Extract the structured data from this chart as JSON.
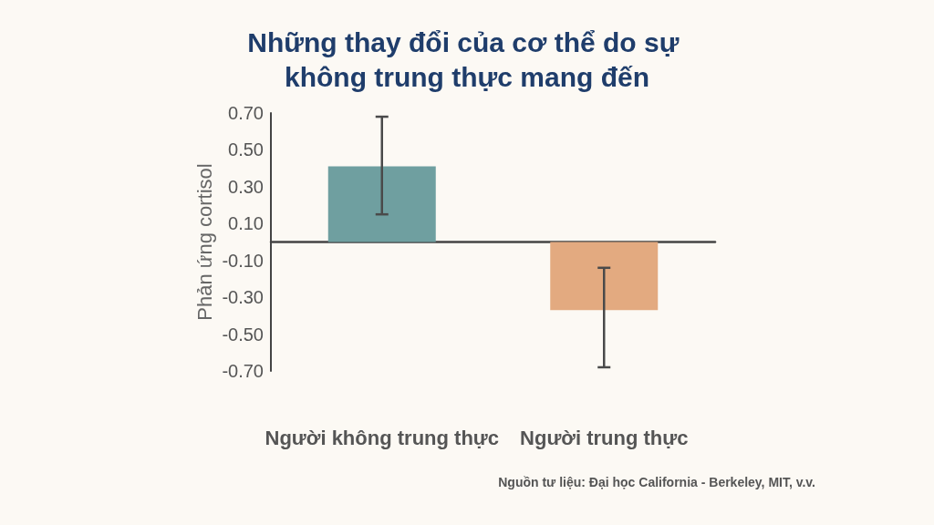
{
  "chart_data": {
    "type": "bar",
    "title": "Những thay đổi của cơ thể do sự không trung thực mang đến",
    "ylabel": "Phản ứng cortisol",
    "categories": [
      "Người không trung thực",
      "Người trung thực"
    ],
    "values": [
      0.41,
      -0.37
    ],
    "colors": [
      "#6f9fa0",
      "#e3aa80"
    ],
    "errors": [
      [
        0.15,
        0.68
      ],
      [
        -0.68,
        -0.14
      ]
    ],
    "ylim": [
      -0.7,
      0.7
    ],
    "yticks": [
      {
        "value": 0.7,
        "label": "0.70"
      },
      {
        "value": 0.5,
        "label": "0.50"
      },
      {
        "value": 0.3,
        "label": "0.30"
      },
      {
        "value": 0.1,
        "label": "0.10"
      },
      {
        "value": -0.1,
        "label": "-0.10"
      },
      {
        "value": -0.3,
        "label": "-0.30"
      },
      {
        "value": -0.5,
        "label": "-0.50"
      },
      {
        "value": -0.7,
        "label": "-0.70"
      }
    ],
    "grid": false,
    "annotations": [
      "Nguồn tư liệu: Đại học California - Berkeley, MIT, v.v."
    ]
  }
}
